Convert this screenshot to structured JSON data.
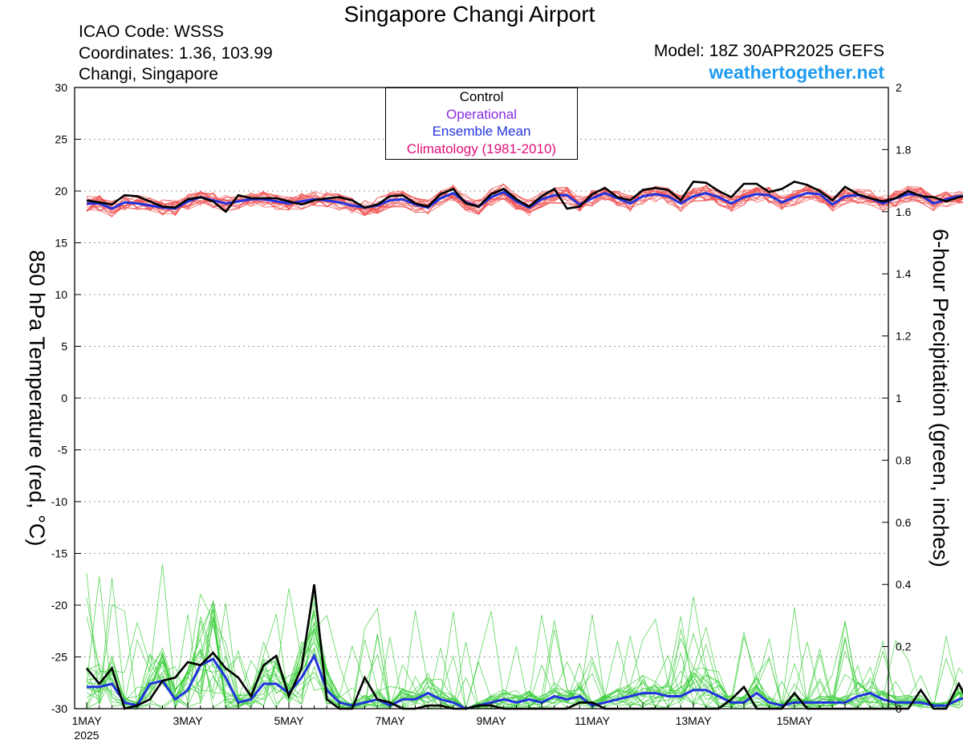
{
  "header": {
    "title": "Singapore Changi Airport",
    "icao": "ICAO Code: WSSS",
    "coords": "Coordinates: 1.36, 103.99",
    "place": "Changi, Singapore",
    "model": "Model: 18Z 30APR2025 GEFS",
    "brand": "weathertogether.net"
  },
  "legend": {
    "items": [
      {
        "label": "Control",
        "color": "#000000"
      },
      {
        "label": "Operational",
        "color": "#8a2be2"
      },
      {
        "label": "Ensemble Mean",
        "color": "#2233dd"
      },
      {
        "label": "Climatology (1981-2010)",
        "color": "#e0107a"
      }
    ]
  },
  "chart_data": {
    "type": "line",
    "time_axis": {
      "unit": "6-hourly",
      "start": "1MAY",
      "step_hours": 6,
      "tick_labels": [
        "1MAY",
        "3MAY",
        "5MAY",
        "7MAY",
        "9MAY",
        "11MAY",
        "13MAY",
        "15MAY"
      ],
      "tick_steps": [
        0,
        8,
        16,
        24,
        32,
        40,
        48,
        56
      ],
      "year_label": "2025",
      "last_step": 64
    },
    "left_axis": {
      "label": "850 hPa Temperature (red, °C)",
      "ylim": [
        -30,
        30
      ],
      "ticks": [
        30,
        25,
        20,
        15,
        10,
        5,
        0,
        -5,
        -10,
        -15,
        -20,
        -25,
        -30
      ]
    },
    "right_axis": {
      "label": "6-hour Precipitation (green, inches)",
      "ylim": [
        0,
        2
      ],
      "ticks": [
        "2",
        "1.8",
        "1.6",
        "1.4",
        "1.2",
        "1",
        "0.8",
        "0.6",
        "0.4",
        "0.2",
        "0"
      ]
    },
    "grid": "dotted horizontal",
    "series": {
      "control_temp": [
        19.1,
        18.9,
        18.7,
        19.6,
        19.5,
        19.0,
        18.5,
        18.4,
        19.2,
        19.4,
        19.0,
        18.0,
        19.6,
        19.3,
        19.3,
        19.3,
        19.0,
        18.7,
        19.1,
        19.3,
        19.4,
        19.1,
        18.4,
        18.7,
        19.5,
        19.6,
        18.8,
        18.5,
        19.7,
        20.2,
        18.8,
        18.5,
        19.7,
        20.2,
        19.2,
        18.5,
        19.5,
        20.2,
        18.3,
        18.5,
        19.7,
        20.3,
        19.4,
        19.1,
        20.1,
        20.3,
        20.1,
        19.1,
        20.9,
        20.8,
        20.0,
        19.4,
        20.7,
        20.7,
        19.9,
        20.2,
        20.9,
        20.6,
        20.0,
        19.1,
        20.4,
        19.7,
        19.3,
        19.0,
        19.3,
        20.0,
        19.5,
        19.4,
        19.0,
        19.4,
        19.7
      ],
      "mean_temp": [
        18.8,
        18.8,
        18.3,
        18.9,
        18.8,
        18.6,
        18.4,
        18.3,
        19.0,
        19.4,
        19.1,
        18.8,
        19.0,
        19.2,
        19.2,
        19.0,
        18.8,
        19.0,
        19.2,
        19.1,
        18.9,
        18.6,
        18.4,
        18.6,
        19.1,
        19.2,
        18.7,
        18.4,
        19.3,
        19.8,
        18.9,
        18.5,
        19.4,
        19.9,
        19.0,
        18.4,
        19.2,
        19.6,
        19.6,
        18.7,
        19.3,
        19.8,
        19.3,
        18.8,
        19.5,
        19.7,
        19.5,
        18.8,
        19.5,
        19.8,
        19.4,
        18.8,
        19.4,
        19.7,
        19.6,
        18.9,
        19.4,
        19.8,
        19.7,
        18.7,
        19.5,
        19.6,
        19.3,
        18.8,
        19.3,
        19.7,
        19.6,
        18.8,
        19.2,
        19.5,
        19.6
      ],
      "control_precip": [
        0.13,
        0.08,
        0.13,
        0.0,
        0.01,
        0.03,
        0.09,
        0.1,
        0.15,
        0.14,
        0.18,
        0.13,
        0.1,
        0.04,
        0.14,
        0.17,
        0.04,
        0.13,
        0.4,
        0.03,
        0.0,
        0.0,
        0.1,
        0.03,
        0.02,
        0.0,
        0.0,
        0.01,
        0.01,
        0.0,
        0.0,
        0.01,
        0.01,
        0.0,
        0.0,
        0.0,
        0.0,
        0.0,
        0.0,
        0.02,
        0.02,
        0.0,
        0.0,
        0.0,
        0.0,
        0.0,
        0.0,
        0.0,
        0.0,
        0.0,
        0.0,
        0.03,
        0.07,
        0.0,
        0.0,
        0.0,
        0.05,
        0.0,
        0.0,
        0.0,
        0.0,
        0.0,
        0.0,
        0.0,
        0.0,
        0.0,
        0.06,
        0.0,
        0.0,
        0.08,
        0.0
      ],
      "mean_precip": [
        0.07,
        0.07,
        0.08,
        0.02,
        0.01,
        0.08,
        0.09,
        0.03,
        0.06,
        0.14,
        0.16,
        0.1,
        0.02,
        0.03,
        0.08,
        0.08,
        0.05,
        0.1,
        0.17,
        0.06,
        0.02,
        0.01,
        0.02,
        0.03,
        0.01,
        0.03,
        0.03,
        0.05,
        0.03,
        0.02,
        0.0,
        0.01,
        0.02,
        0.03,
        0.02,
        0.03,
        0.02,
        0.04,
        0.03,
        0.04,
        0.01,
        0.02,
        0.03,
        0.04,
        0.05,
        0.05,
        0.04,
        0.04,
        0.06,
        0.06,
        0.04,
        0.02,
        0.02,
        0.05,
        0.02,
        0.01,
        0.02,
        0.02,
        0.02,
        0.02,
        0.02,
        0.04,
        0.05,
        0.03,
        0.02,
        0.02,
        0.02,
        0.01,
        0.01,
        0.03,
        0.04
      ]
    }
  }
}
